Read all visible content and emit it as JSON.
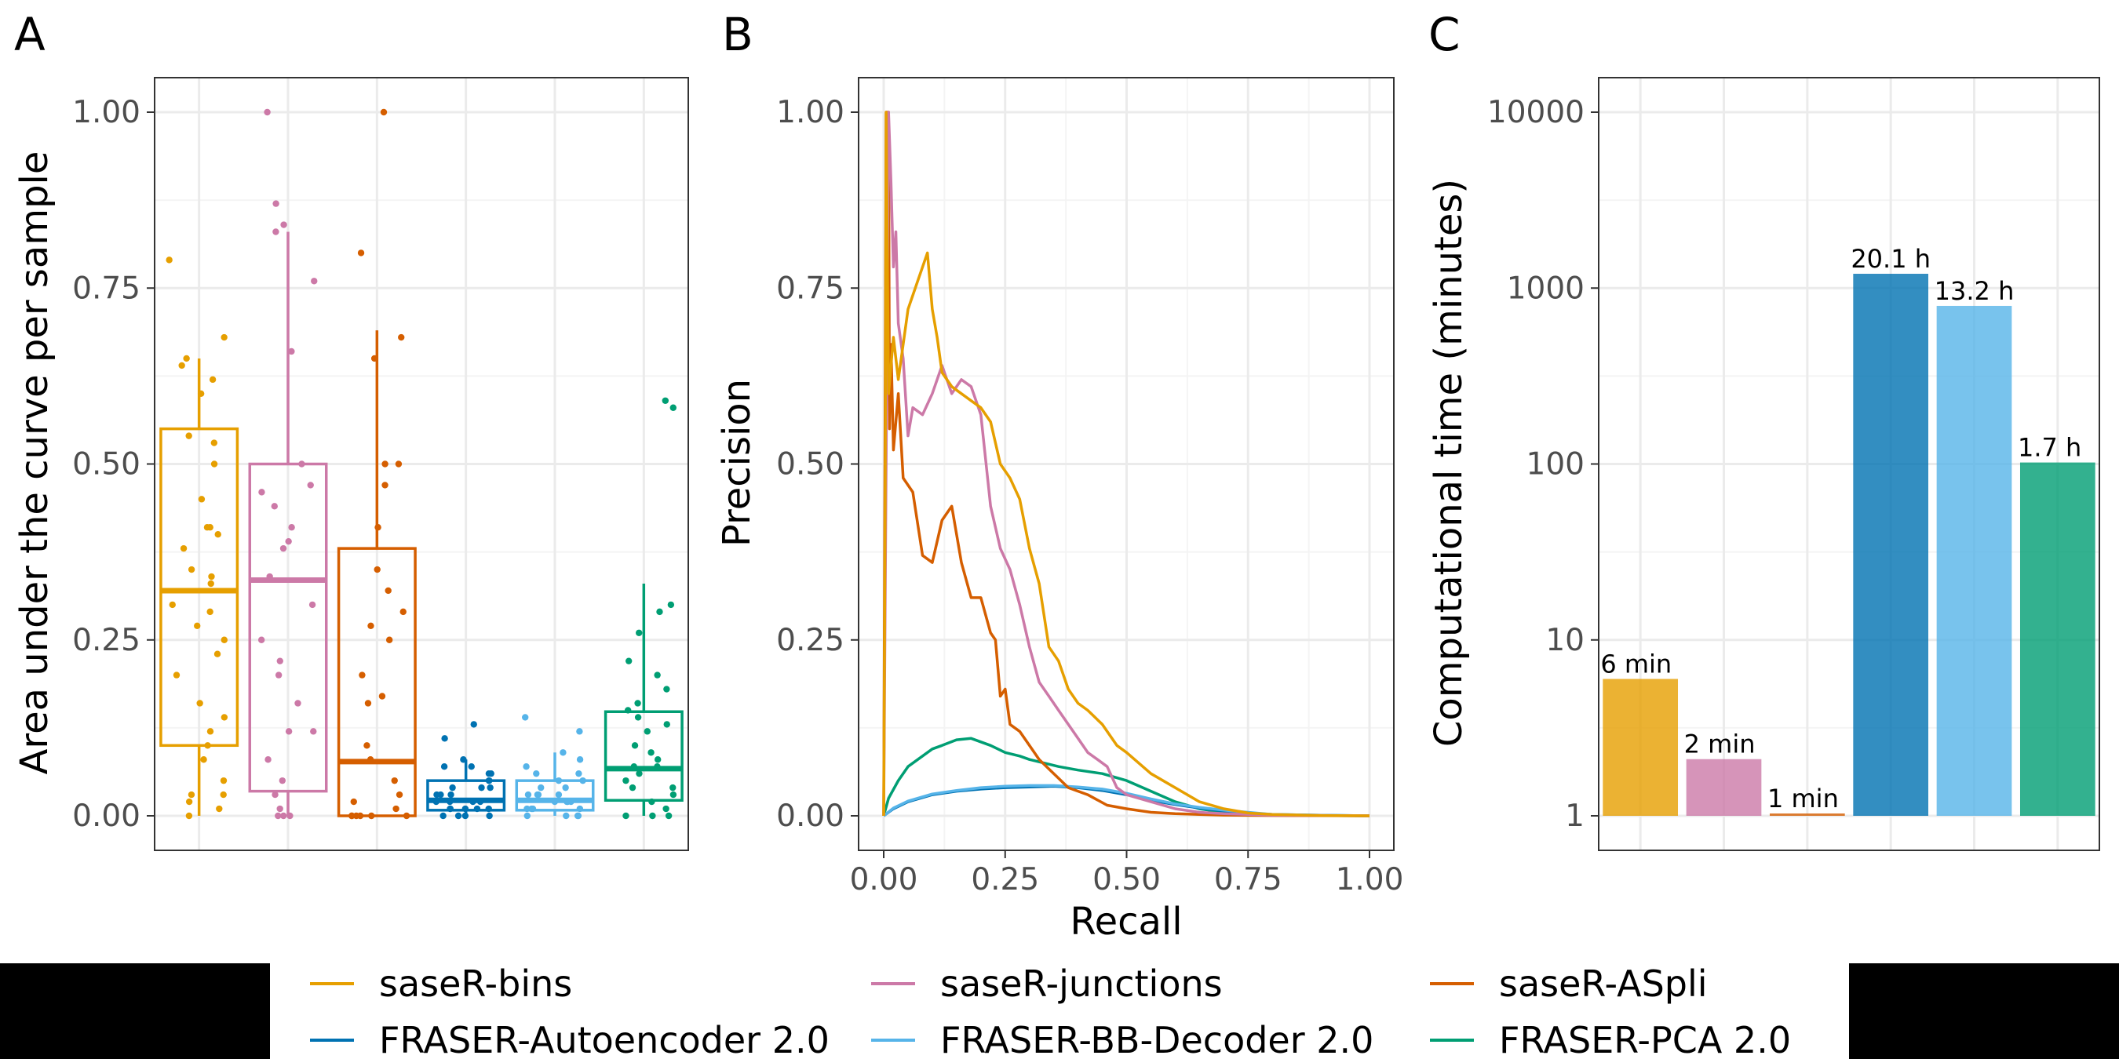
{
  "series_colors": {
    "saseR-bins": "#E69F00",
    "saseR-junctions": "#CC79A7",
    "saseR-ASpli": "#D55E00",
    "FRASER-Autoencoder 2.0": "#0072B2",
    "FRASER-BB-Decoder 2.0": "#56B4E9",
    "FRASER-PCA 2.0": "#009E73"
  },
  "legend": {
    "items": [
      {
        "label": "saseR-bins",
        "color": "#E69F00"
      },
      {
        "label": "saseR-junctions",
        "color": "#CC79A7"
      },
      {
        "label": "saseR-ASpli",
        "color": "#D55E00"
      },
      {
        "label": "FRASER-Autoencoder 2.0",
        "color": "#0072B2"
      },
      {
        "label": "FRASER-BB-Decoder 2.0",
        "color": "#56B4E9"
      },
      {
        "label": "FRASER-PCA 2.0",
        "color": "#009E73"
      }
    ]
  },
  "chart_data": [
    {
      "panel": "A",
      "type": "box",
      "xlabel": "",
      "ylabel": "Area under the curve per sample",
      "ylim": [
        0,
        1
      ],
      "yticks": [
        "0.00",
        "0.25",
        "0.50",
        "0.75",
        "1.00"
      ],
      "grid": true,
      "series": [
        {
          "name": "saseR-bins",
          "color": "#E69F00",
          "q1": 0.1,
          "median": 0.32,
          "q3": 0.55,
          "whisker_low": 0.0,
          "whisker_high": 0.65,
          "points": [
            0.79,
            0.68,
            0.65,
            0.64,
            0.62,
            0.6,
            0.54,
            0.53,
            0.5,
            0.45,
            0.41,
            0.41,
            0.4,
            0.38,
            0.35,
            0.34,
            0.33,
            0.3,
            0.29,
            0.27,
            0.25,
            0.23,
            0.2,
            0.16,
            0.14,
            0.12,
            0.1,
            0.08,
            0.05,
            0.03,
            0.03,
            0.02,
            0.01,
            0.0
          ]
        },
        {
          "name": "saseR-junctions",
          "color": "#CC79A7",
          "q1": 0.035,
          "median": 0.335,
          "q3": 0.5,
          "whisker_low": 0.0,
          "whisker_high": 0.83,
          "points": [
            1.0,
            0.87,
            0.84,
            0.83,
            0.76,
            0.66,
            0.5,
            0.47,
            0.46,
            0.44,
            0.41,
            0.39,
            0.38,
            0.34,
            0.3,
            0.25,
            0.22,
            0.2,
            0.16,
            0.12,
            0.12,
            0.08,
            0.05,
            0.03,
            0.01,
            0.0,
            0.0,
            0.0
          ]
        },
        {
          "name": "saseR-ASpli",
          "color": "#D55E00",
          "q1": 0.0,
          "median": 0.077,
          "q3": 0.38,
          "whisker_low": 0.0,
          "whisker_high": 0.69,
          "points": [
            1.0,
            0.8,
            0.68,
            0.65,
            0.5,
            0.5,
            0.47,
            0.41,
            0.35,
            0.32,
            0.29,
            0.27,
            0.25,
            0.2,
            0.17,
            0.16,
            0.1,
            0.08,
            0.05,
            0.03,
            0.02,
            0.01,
            0.0,
            0.0,
            0.0,
            0.0,
            0.0,
            0.0
          ]
        },
        {
          "name": "FRASER-Autoencoder 2.0",
          "color": "#0072B2",
          "q1": 0.008,
          "median": 0.022,
          "q3": 0.05,
          "whisker_low": 0.0,
          "whisker_high": 0.08,
          "points": [
            0.13,
            0.11,
            0.08,
            0.07,
            0.07,
            0.06,
            0.06,
            0.05,
            0.05,
            0.04,
            0.04,
            0.04,
            0.03,
            0.03,
            0.03,
            0.02,
            0.02,
            0.02,
            0.02,
            0.01,
            0.01,
            0.01,
            0.01,
            0.01,
            0.0,
            0.0,
            0.0,
            0.0
          ]
        },
        {
          "name": "FRASER-BB-Decoder 2.0",
          "color": "#56B4E9",
          "q1": 0.008,
          "median": 0.022,
          "q3": 0.05,
          "whisker_low": 0.0,
          "whisker_high": 0.09,
          "points": [
            0.14,
            0.12,
            0.09,
            0.08,
            0.07,
            0.06,
            0.06,
            0.05,
            0.05,
            0.04,
            0.04,
            0.03,
            0.03,
            0.03,
            0.03,
            0.02,
            0.02,
            0.02,
            0.02,
            0.01,
            0.01,
            0.01,
            0.01,
            0.0,
            0.0,
            0.0,
            0.0
          ]
        },
        {
          "name": "FRASER-PCA 2.0",
          "color": "#009E73",
          "q1": 0.022,
          "median": 0.067,
          "q3": 0.148,
          "whisker_low": 0.0,
          "whisker_high": 0.33,
          "points": [
            0.59,
            0.58,
            0.3,
            0.29,
            0.26,
            0.22,
            0.2,
            0.18,
            0.16,
            0.15,
            0.14,
            0.13,
            0.12,
            0.1,
            0.09,
            0.08,
            0.07,
            0.07,
            0.06,
            0.05,
            0.04,
            0.04,
            0.03,
            0.02,
            0.01,
            0.0,
            0.0,
            0.0
          ]
        }
      ]
    },
    {
      "panel": "B",
      "type": "line",
      "xlabel": "Recall",
      "ylabel": "Precision",
      "xlim": [
        0,
        1
      ],
      "ylim": [
        0,
        1
      ],
      "xticks": [
        "0.00",
        "0.25",
        "0.50",
        "0.75",
        "1.00"
      ],
      "yticks": [
        "0.00",
        "0.25",
        "0.50",
        "0.75",
        "1.00"
      ],
      "grid": true,
      "series": [
        {
          "name": "saseR-bins",
          "color": "#E69F00",
          "x": [
            0.0,
            0.003,
            0.005,
            0.01,
            0.02,
            0.03,
            0.05,
            0.07,
            0.09,
            0.1,
            0.11,
            0.12,
            0.14,
            0.16,
            0.18,
            0.2,
            0.22,
            0.24,
            0.26,
            0.28,
            0.3,
            0.32,
            0.34,
            0.36,
            0.38,
            0.4,
            0.42,
            0.45,
            0.48,
            0.5,
            0.55,
            0.6,
            0.65,
            0.7,
            0.75,
            0.8,
            0.9,
            1.0
          ],
          "y": [
            0.0,
            0.45,
            1.0,
            0.6,
            0.68,
            0.62,
            0.72,
            0.76,
            0.8,
            0.72,
            0.68,
            0.63,
            0.61,
            0.6,
            0.59,
            0.58,
            0.56,
            0.5,
            0.48,
            0.45,
            0.38,
            0.33,
            0.24,
            0.22,
            0.18,
            0.16,
            0.15,
            0.13,
            0.1,
            0.09,
            0.06,
            0.04,
            0.02,
            0.01,
            0.004,
            0.002,
            0.0005,
            0.0
          ]
        },
        {
          "name": "saseR-junctions",
          "color": "#CC79A7",
          "x": [
            0.0,
            0.01,
            0.015,
            0.02,
            0.025,
            0.03,
            0.04,
            0.05,
            0.06,
            0.08,
            0.1,
            0.12,
            0.14,
            0.16,
            0.18,
            0.2,
            0.22,
            0.24,
            0.26,
            0.28,
            0.3,
            0.32,
            0.34,
            0.36,
            0.38,
            0.4,
            0.42,
            0.44,
            0.46,
            0.48,
            0.5,
            0.55,
            0.6,
            0.65,
            0.7,
            0.8,
            1.0
          ],
          "y": [
            0.0,
            1.0,
            0.9,
            0.78,
            0.83,
            0.7,
            0.65,
            0.54,
            0.58,
            0.57,
            0.6,
            0.64,
            0.6,
            0.62,
            0.61,
            0.57,
            0.44,
            0.38,
            0.35,
            0.3,
            0.24,
            0.19,
            0.17,
            0.15,
            0.13,
            0.11,
            0.09,
            0.08,
            0.07,
            0.04,
            0.03,
            0.02,
            0.01,
            0.005,
            0.003,
            0.001,
            0.0
          ]
        },
        {
          "name": "saseR-ASpli",
          "color": "#D55E00",
          "x": [
            0.0,
            0.005,
            0.01,
            0.012,
            0.015,
            0.02,
            0.03,
            0.04,
            0.06,
            0.08,
            0.1,
            0.12,
            0.14,
            0.16,
            0.18,
            0.2,
            0.22,
            0.23,
            0.24,
            0.25,
            0.26,
            0.28,
            0.3,
            0.32,
            0.35,
            0.38,
            0.42,
            0.46,
            0.5,
            0.55,
            0.6,
            0.7,
            0.8,
            1.0
          ],
          "y": [
            0.0,
            1.0,
            1.0,
            0.55,
            0.67,
            0.52,
            0.6,
            0.48,
            0.46,
            0.37,
            0.36,
            0.42,
            0.44,
            0.36,
            0.31,
            0.31,
            0.26,
            0.25,
            0.17,
            0.18,
            0.13,
            0.12,
            0.1,
            0.08,
            0.06,
            0.04,
            0.03,
            0.015,
            0.01,
            0.005,
            0.003,
            0.001,
            0.0005,
            0.0
          ]
        },
        {
          "name": "FRASER-Autoencoder 2.0",
          "color": "#0072B2",
          "x": [
            0.0,
            0.02,
            0.05,
            0.1,
            0.15,
            0.2,
            0.25,
            0.3,
            0.35,
            0.4,
            0.45,
            0.5,
            0.55,
            0.6,
            0.65,
            0.7,
            0.75,
            0.8,
            0.9,
            1.0
          ],
          "y": [
            0.0,
            0.01,
            0.02,
            0.03,
            0.035,
            0.038,
            0.04,
            0.041,
            0.042,
            0.04,
            0.036,
            0.03,
            0.022,
            0.016,
            0.011,
            0.007,
            0.004,
            0.002,
            0.0008,
            0.0
          ]
        },
        {
          "name": "FRASER-BB-Decoder 2.0",
          "color": "#56B4E9",
          "x": [
            0.0,
            0.02,
            0.05,
            0.1,
            0.15,
            0.2,
            0.25,
            0.3,
            0.35,
            0.4,
            0.45,
            0.5,
            0.55,
            0.6,
            0.65,
            0.7,
            0.75,
            0.8,
            0.9,
            1.0
          ],
          "y": [
            0.0,
            0.011,
            0.021,
            0.031,
            0.036,
            0.04,
            0.042,
            0.043,
            0.043,
            0.041,
            0.038,
            0.032,
            0.024,
            0.017,
            0.012,
            0.008,
            0.005,
            0.002,
            0.0008,
            0.0
          ]
        },
        {
          "name": "FRASER-PCA 2.0",
          "color": "#009E73",
          "x": [
            0.0,
            0.01,
            0.03,
            0.05,
            0.08,
            0.1,
            0.12,
            0.15,
            0.18,
            0.2,
            0.22,
            0.25,
            0.28,
            0.3,
            0.33,
            0.36,
            0.4,
            0.45,
            0.5,
            0.55,
            0.6,
            0.65,
            0.7,
            0.75,
            0.8,
            0.9,
            1.0
          ],
          "y": [
            0.0,
            0.025,
            0.05,
            0.07,
            0.085,
            0.095,
            0.1,
            0.108,
            0.11,
            0.105,
            0.1,
            0.09,
            0.085,
            0.08,
            0.075,
            0.07,
            0.065,
            0.06,
            0.05,
            0.035,
            0.02,
            0.01,
            0.005,
            0.003,
            0.0015,
            0.0005,
            0.0
          ]
        }
      ]
    },
    {
      "panel": "C",
      "type": "bar",
      "xlabel": "",
      "ylabel": "Computational time (minutes)",
      "yscale": "log",
      "ylim": [
        0.8,
        14000
      ],
      "yticks": [
        "1",
        "10",
        "100",
        "1000",
        "10000"
      ],
      "grid": true,
      "categories": [
        "saseR-bins",
        "saseR-junctions",
        "saseR-ASpli",
        "FRASER-Autoencoder 2.0",
        "FRASER-BB-Decoder 2.0",
        "FRASER-PCA 2.0"
      ],
      "values": [
        6,
        2.1,
        1,
        1206,
        792,
        102
      ],
      "labels": [
        "6 min",
        "2 min",
        "1 min",
        "20.1 h",
        "13.2 h",
        "1.7 h"
      ],
      "colors": [
        "#E69F00",
        "#CC79A7",
        "#D55E00",
        "#0072B2",
        "#56B4E9",
        "#009E73"
      ]
    }
  ]
}
